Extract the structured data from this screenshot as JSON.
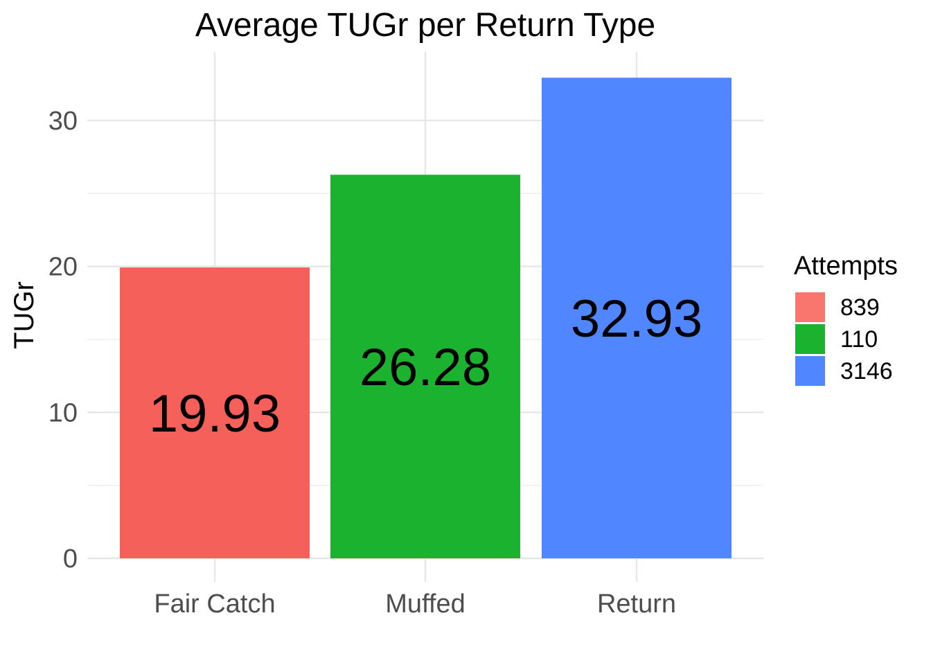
{
  "chart_data": {
    "type": "bar",
    "title": "Average TUGr per Return Type",
    "xlabel": "",
    "ylabel": "TUGr",
    "categories": [
      "Fair Catch",
      "Muffed",
      "Return"
    ],
    "values": [
      19.93,
      26.28,
      32.93
    ],
    "value_labels": [
      "19.93",
      "26.28",
      "32.93"
    ],
    "ylim": [
      0,
      33
    ],
    "yticks": [
      0,
      10,
      20,
      30
    ],
    "ytick_labels": [
      "0",
      "10",
      "20",
      "30"
    ],
    "grid": true,
    "legend": {
      "title": "Attempts",
      "position": "right",
      "entries": [
        {
          "label": "839",
          "color": "#F8766D"
        },
        {
          "label": "110",
          "color": "#1AB22F"
        },
        {
          "label": "3146",
          "color": "#5086FF"
        }
      ]
    },
    "bar_colors": [
      "#F5605A",
      "#1AB22F",
      "#5086FF"
    ]
  }
}
